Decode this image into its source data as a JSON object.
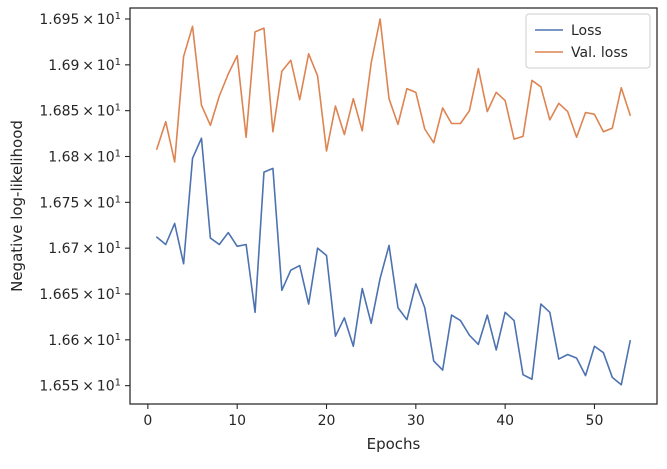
{
  "chart_data": {
    "type": "line",
    "title": "",
    "xlabel": "Epochs",
    "ylabel": "Negative log-likelihood",
    "xlim": [
      -2,
      57
    ],
    "ylim": [
      16.53,
      16.962
    ],
    "grid": false,
    "legend_position": "top-right",
    "x_ticks": [
      {
        "value": 0,
        "label": "0"
      },
      {
        "value": 10,
        "label": "10"
      },
      {
        "value": 20,
        "label": "20"
      },
      {
        "value": 30,
        "label": "30"
      },
      {
        "value": 40,
        "label": "40"
      },
      {
        "value": 50,
        "label": "50"
      }
    ],
    "y_ticks": [
      {
        "value": 16.55,
        "mantissa": "1.655",
        "times": "×",
        "base": "10",
        "exp": "1"
      },
      {
        "value": 16.6,
        "mantissa": "1.66",
        "times": "×",
        "base": "10",
        "exp": "1"
      },
      {
        "value": 16.65,
        "mantissa": "1.665",
        "times": "×",
        "base": "10",
        "exp": "1"
      },
      {
        "value": 16.7,
        "mantissa": "1.67",
        "times": "×",
        "base": "10",
        "exp": "1"
      },
      {
        "value": 16.75,
        "mantissa": "1.675",
        "times": "×",
        "base": "10",
        "exp": "1"
      },
      {
        "value": 16.8,
        "mantissa": "1.68",
        "times": "×",
        "base": "10",
        "exp": "1"
      },
      {
        "value": 16.85,
        "mantissa": "1.685",
        "times": "×",
        "base": "10",
        "exp": "1"
      },
      {
        "value": 16.9,
        "mantissa": "1.69",
        "times": "×",
        "base": "10",
        "exp": "1"
      },
      {
        "value": 16.95,
        "mantissa": "1.695",
        "times": "×",
        "base": "10",
        "exp": "1"
      }
    ],
    "x": [
      1,
      2,
      3,
      4,
      5,
      6,
      7,
      8,
      9,
      10,
      11,
      12,
      13,
      14,
      15,
      16,
      17,
      18,
      19,
      20,
      21,
      22,
      23,
      24,
      25,
      26,
      27,
      28,
      29,
      30,
      31,
      32,
      33,
      34,
      35,
      36,
      37,
      38,
      39,
      40,
      41,
      42,
      43,
      44,
      45,
      46,
      47,
      48,
      49,
      50,
      51,
      52,
      53,
      54
    ],
    "series": [
      {
        "name": "Loss",
        "color": "#4c72b0",
        "values": [
          16.712,
          16.704,
          16.727,
          16.683,
          16.798,
          16.82,
          16.711,
          16.704,
          16.717,
          16.702,
          16.704,
          16.63,
          16.783,
          16.787,
          16.654,
          16.676,
          16.681,
          16.639,
          16.7,
          16.692,
          16.604,
          16.624,
          16.593,
          16.656,
          16.618,
          16.667,
          16.703,
          16.635,
          16.622,
          16.661,
          16.635,
          16.577,
          16.567,
          16.627,
          16.621,
          16.605,
          16.595,
          16.627,
          16.589,
          16.63,
          16.621,
          16.562,
          16.557,
          16.639,
          16.63,
          16.579,
          16.584,
          16.58,
          16.561,
          16.593,
          16.586,
          16.559,
          16.551,
          16.599
        ]
      },
      {
        "name": "Val. loss",
        "color": "#dd8452",
        "values": [
          16.808,
          16.838,
          16.794,
          16.909,
          16.942,
          16.856,
          16.834,
          16.866,
          16.89,
          16.91,
          16.821,
          16.936,
          16.94,
          16.827,
          16.893,
          16.905,
          16.862,
          16.912,
          16.888,
          16.806,
          16.855,
          16.824,
          16.863,
          16.828,
          16.902,
          16.95,
          16.863,
          16.835,
          16.874,
          16.87,
          16.83,
          16.815,
          16.853,
          16.836,
          16.836,
          16.85,
          16.896,
          16.849,
          16.87,
          16.861,
          16.819,
          16.822,
          16.883,
          16.876,
          16.84,
          16.858,
          16.849,
          16.821,
          16.848,
          16.846,
          16.827,
          16.831,
          16.875,
          16.845
        ]
      }
    ]
  }
}
